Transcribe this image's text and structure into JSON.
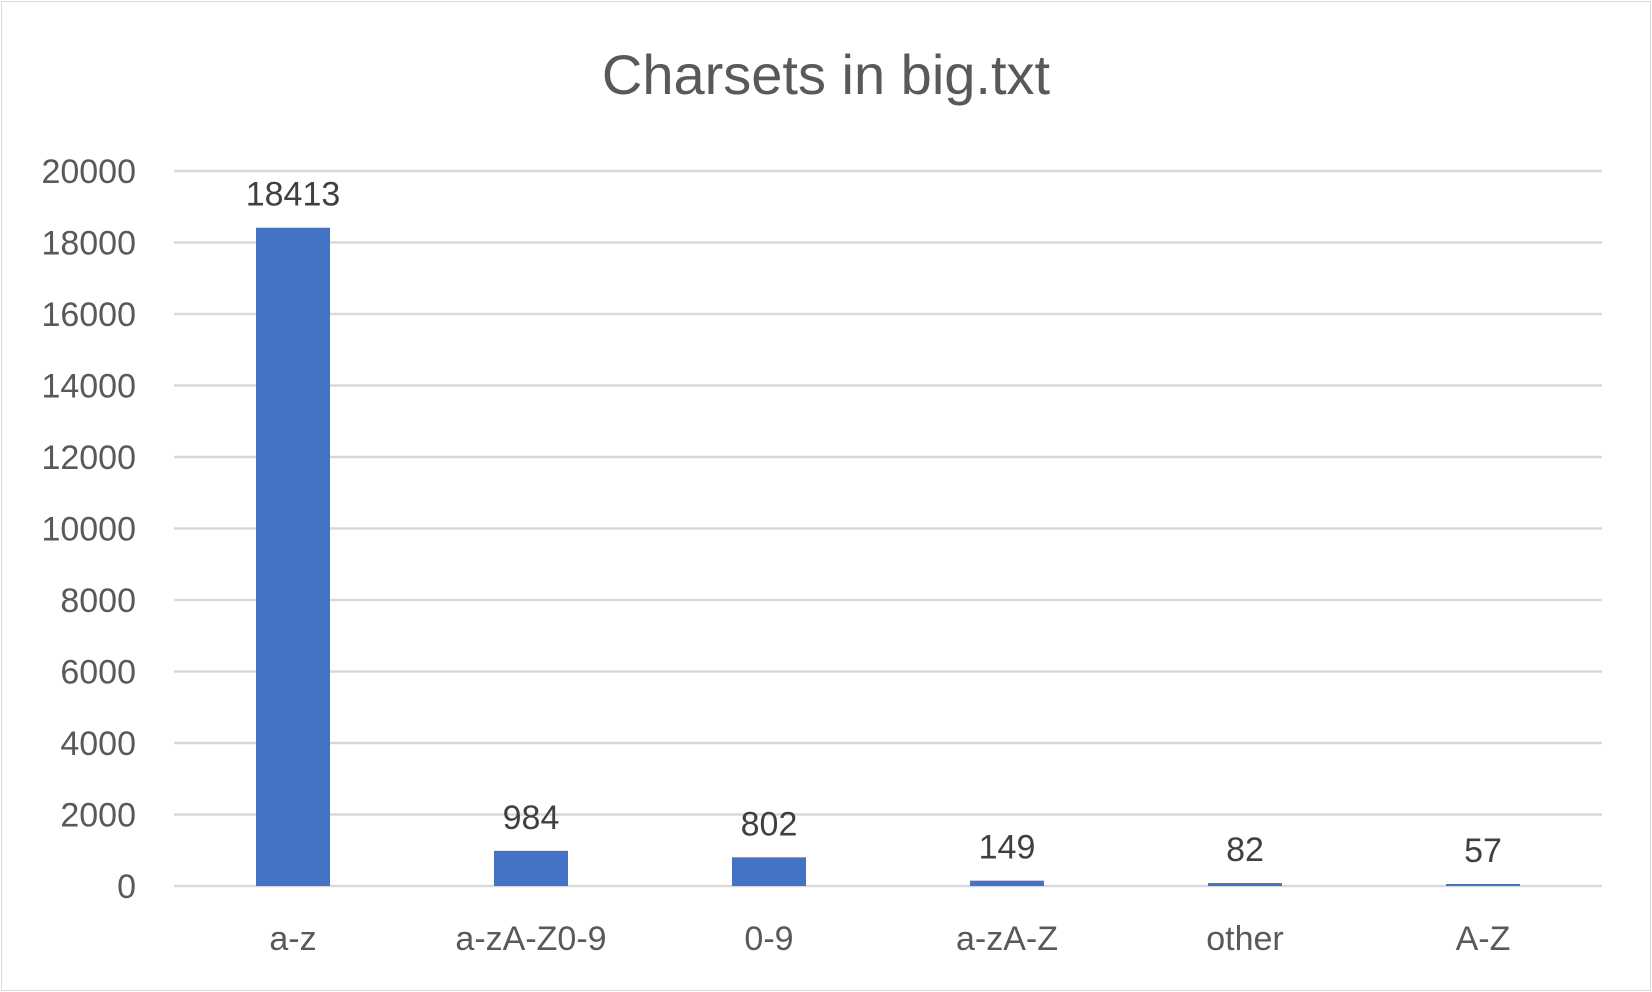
{
  "chart_data": {
    "type": "bar",
    "title": "Charsets in big.txt",
    "xlabel": "",
    "ylabel": "",
    "categories": [
      "a-z",
      "a-zA-Z0-9",
      "0-9",
      "a-zA-Z",
      "other",
      "A-Z"
    ],
    "values": [
      18413,
      984,
      802,
      149,
      82,
      57
    ],
    "data_labels": [
      "18413",
      "984",
      "802",
      "149",
      "82",
      "57"
    ],
    "ylim": [
      0,
      20000
    ],
    "yticks": [
      0,
      2000,
      4000,
      6000,
      8000,
      10000,
      12000,
      14000,
      16000,
      18000,
      20000
    ],
    "ytick_labels": [
      "0",
      "2000",
      "4000",
      "6000",
      "8000",
      "10000",
      "12000",
      "14000",
      "16000",
      "18000",
      "20000"
    ],
    "grid": true,
    "legend": "none",
    "colors": {
      "bar": "#4472c4",
      "grid": "#d9d9d9",
      "text": "#595959"
    }
  }
}
